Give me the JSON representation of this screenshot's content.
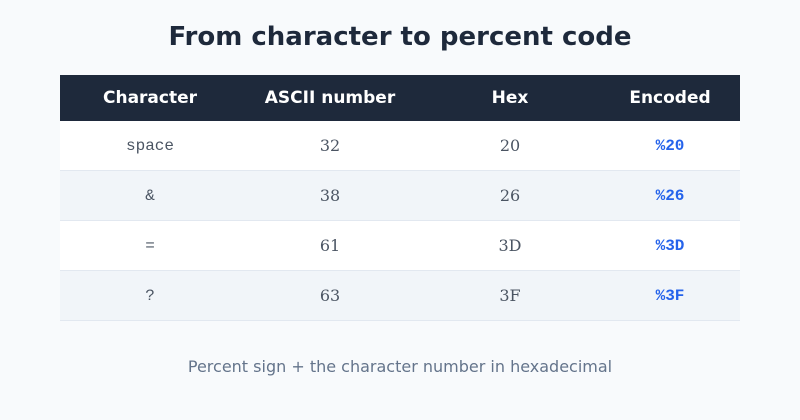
{
  "title": "From character to percent code",
  "table": {
    "headers": [
      "Character",
      "ASCII number",
      "Hex",
      "Encoded"
    ],
    "rows": [
      {
        "character": "space",
        "ascii": "32",
        "hex": "20",
        "encoded": "%20"
      },
      {
        "character": "&",
        "ascii": "38",
        "hex": "26",
        "encoded": "%26"
      },
      {
        "character": "=",
        "ascii": "61",
        "hex": "3D",
        "encoded": "%3D"
      },
      {
        "character": "?",
        "ascii": "63",
        "hex": "3F",
        "encoded": "%3F"
      }
    ]
  },
  "caption": "Percent sign + the character number in hexadecimal",
  "colors": {
    "header_bg": "#1e293b",
    "accent": "#2563eb",
    "stripe": "#f1f5f9"
  }
}
